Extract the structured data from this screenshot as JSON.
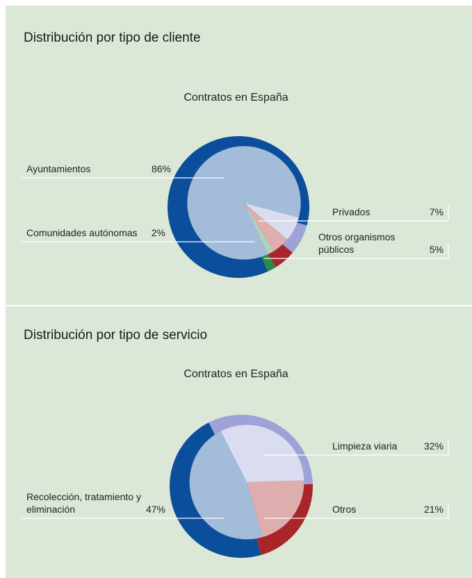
{
  "chart_data": [
    {
      "type": "pie",
      "title": "Distribución por tipo de cliente",
      "subtitle": "Contratos en España",
      "categories": [
        "Privados",
        "Otros organismos públicos",
        "Comunidades autónomas",
        "Ayuntamientos"
      ],
      "values": [
        7,
        5,
        2,
        86
      ],
      "value_labels": [
        "7%",
        "5%",
        "2%",
        "86%"
      ],
      "colors": [
        "#9da3d6",
        "#a8262a",
        "#2a8a4a",
        "#0b4e9b"
      ]
    },
    {
      "type": "pie",
      "title": "Distribución por tipo de servicio",
      "subtitle": "Contratos en España",
      "categories": [
        "Limpieza viaria",
        "Otros",
        "Recolección, tratamiento y eliminación"
      ],
      "values": [
        32,
        21,
        47
      ],
      "value_labels": [
        "32%",
        "21%",
        "47%"
      ],
      "colors": [
        "#9da3d6",
        "#a8262a",
        "#0b4e9b"
      ]
    }
  ]
}
